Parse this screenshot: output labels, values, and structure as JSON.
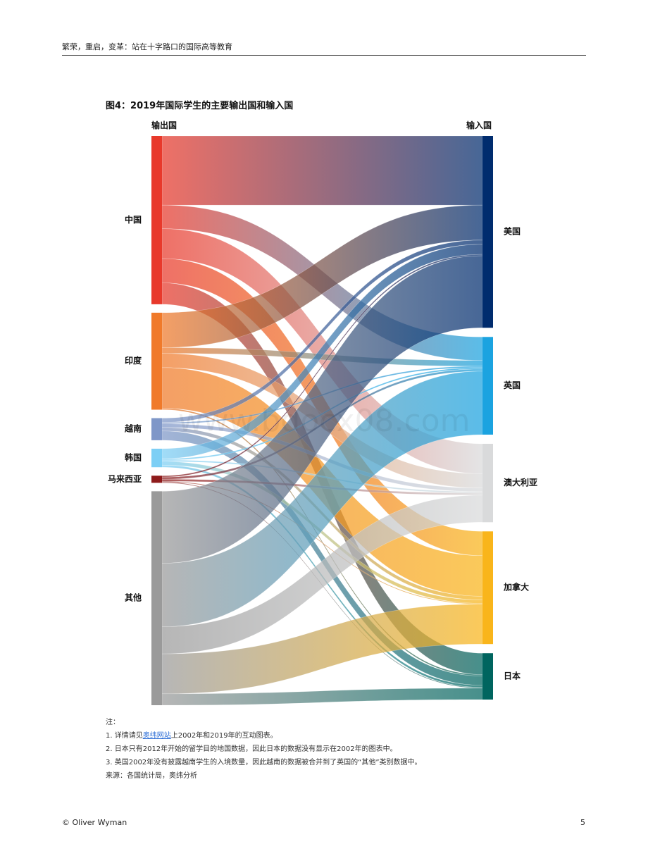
{
  "header": {
    "title": "繁荣，重启，变革：站在十字路口的国际高等教育"
  },
  "figure": {
    "title": "图4：2019年国际学生的主要输出国和输入国",
    "source_col_label": "输出国",
    "target_col_label": "输入国"
  },
  "watermark": "www.bdocx08.com",
  "chart_data": {
    "type": "sankey",
    "title": "图4：2019年国际学生的主要输出国和输入国",
    "sources": [
      {
        "name": "中国",
        "color": "#e8392b"
      },
      {
        "name": "印度",
        "color": "#f07a2a"
      },
      {
        "name": "越南",
        "color": "#7f97c8"
      },
      {
        "name": "韩国",
        "color": "#7dcff5"
      },
      {
        "name": "马来西亚",
        "color": "#8e1b1b"
      },
      {
        "name": "其他",
        "color": "#9a9a9a"
      }
    ],
    "targets": [
      {
        "name": "美国",
        "color": "#002c6e"
      },
      {
        "name": "英国",
        "color": "#1ba3e0"
      },
      {
        "name": "澳大利亚",
        "color": "#d9dadb"
      },
      {
        "name": "加拿大",
        "color": "#f9b51b"
      },
      {
        "name": "日本",
        "color": "#00655f"
      }
    ],
    "flows": [
      {
        "source": "中国",
        "target": "美国",
        "value": 97
      },
      {
        "source": "中国",
        "target": "英国",
        "value": 33
      },
      {
        "source": "中国",
        "target": "澳大利亚",
        "value": 42
      },
      {
        "source": "中国",
        "target": "加拿大",
        "value": 34
      },
      {
        "source": "中国",
        "target": "日本",
        "value": 30
      },
      {
        "source": "印度",
        "target": "美国",
        "value": 49
      },
      {
        "source": "印度",
        "target": "英国",
        "value": 8
      },
      {
        "source": "印度",
        "target": "澳大利亚",
        "value": 20
      },
      {
        "source": "印度",
        "target": "加拿大",
        "value": 57
      },
      {
        "source": "印度",
        "target": "日本",
        "value": 2
      },
      {
        "source": "越南",
        "target": "美国",
        "value": 6
      },
      {
        "source": "越南",
        "target": "英国",
        "value": 2
      },
      {
        "source": "越南",
        "target": "澳大利亚",
        "value": 5
      },
      {
        "source": "越南",
        "target": "加拿大",
        "value": 5
      },
      {
        "source": "越南",
        "target": "日本",
        "value": 13
      },
      {
        "source": "韩国",
        "target": "美国",
        "value": 14
      },
      {
        "source": "韩国",
        "target": "英国",
        "value": 2
      },
      {
        "source": "韩国",
        "target": "澳大利亚",
        "value": 2
      },
      {
        "source": "韩国",
        "target": "加拿大",
        "value": 5
      },
      {
        "source": "韩国",
        "target": "日本",
        "value": 3
      },
      {
        "source": "马来西亚",
        "target": "美国",
        "value": 2
      },
      {
        "source": "马来西亚",
        "target": "英国",
        "value": 3
      },
      {
        "source": "马来西亚",
        "target": "澳大利亚",
        "value": 3
      },
      {
        "source": "马来西亚",
        "target": "加拿大",
        "value": 1
      },
      {
        "source": "马来西亚",
        "target": "日本",
        "value": 1
      },
      {
        "source": "其他",
        "target": "美国",
        "value": 101
      },
      {
        "source": "其他",
        "target": "英国",
        "value": 89
      },
      {
        "source": "其他",
        "target": "澳大利亚",
        "value": 38
      },
      {
        "source": "其他",
        "target": "加拿大",
        "value": 56
      },
      {
        "source": "其他",
        "target": "日本",
        "value": 16
      }
    ]
  },
  "notes": {
    "heading": "注：",
    "line1_prefix": "1. 详情请见",
    "line1_link": "奥纬网站",
    "line1_suffix": "上2002年和2019年的互动图表。",
    "line2": "2. 日本只有2012年开始的留学目的地国数据，因此日本的数据没有显示在2002年的图表中。",
    "line3": "3. 英国2002年没有披露越南学生的入境数量，因此越南的数据被合并到了英国的“其他”类别数据中。",
    "source": "来源：各国统计局，奥纬分析"
  },
  "footer": {
    "copyright": "© Oliver Wyman",
    "page_number": "5"
  }
}
